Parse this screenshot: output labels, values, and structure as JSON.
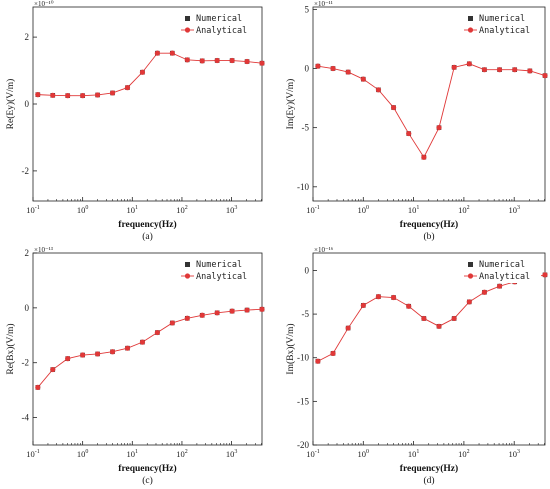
{
  "chart_data": [
    {
      "type": "line",
      "panel_label": "(a)",
      "xlabel": "frequency(Hz)",
      "ylabel": "Re(Ey)(V/m)",
      "multiplier": "×10⁻¹⁰",
      "x_scale": "log",
      "xlim": [
        0.1,
        4096
      ],
      "x_ticks": [
        {
          "v": 0.1,
          "b": "10",
          "e": "-1"
        },
        {
          "v": 1,
          "b": "10",
          "e": "0"
        },
        {
          "v": 10,
          "b": "10",
          "e": "1"
        },
        {
          "v": 100,
          "b": "10",
          "e": "2"
        },
        {
          "v": 1000,
          "b": "10",
          "e": "3"
        }
      ],
      "ylim": [
        -2.9,
        2.9
      ],
      "y_ticks": [
        {
          "v": 2,
          "label": "2"
        },
        {
          "v": 0,
          "label": "0"
        },
        {
          "v": -2,
          "label": "-2"
        }
      ],
      "legend_position": "top-right",
      "x": [
        0.125,
        0.25,
        0.5,
        1,
        2,
        4,
        8,
        16,
        32,
        64,
        128,
        256,
        512,
        1024,
        2048,
        4096
      ],
      "series": [
        {
          "name": "Numerical",
          "marker": "square",
          "color": "#333333",
          "values": [
            0.28,
            0.26,
            0.25,
            0.25,
            0.27,
            0.33,
            0.49,
            0.95,
            1.52,
            1.52,
            1.32,
            1.29,
            1.3,
            1.3,
            1.27,
            1.22
          ]
        },
        {
          "name": "Analytical",
          "marker": "circle",
          "color": "#e03838",
          "values": [
            0.28,
            0.26,
            0.25,
            0.25,
            0.27,
            0.33,
            0.49,
            0.95,
            1.52,
            1.52,
            1.32,
            1.29,
            1.3,
            1.3,
            1.27,
            1.22
          ]
        }
      ]
    },
    {
      "type": "line",
      "panel_label": "(b)",
      "xlabel": "frequency(Hz)",
      "ylabel": "Im(Ey)(V/m)",
      "multiplier": "×10⁻¹¹",
      "x_scale": "log",
      "xlim": [
        0.1,
        4096
      ],
      "x_ticks": [
        {
          "v": 0.1,
          "b": "10",
          "e": "-1"
        },
        {
          "v": 1,
          "b": "10",
          "e": "0"
        },
        {
          "v": 10,
          "b": "10",
          "e": "1"
        },
        {
          "v": 100,
          "b": "10",
          "e": "2"
        },
        {
          "v": 1000,
          "b": "10",
          "e": "3"
        }
      ],
      "ylim": [
        -11.2,
        5.2
      ],
      "y_ticks": [
        {
          "v": 5,
          "label": "5"
        },
        {
          "v": 0,
          "label": "0"
        },
        {
          "v": -5,
          "label": "-5"
        },
        {
          "v": -10,
          "label": "-10"
        }
      ],
      "legend_position": "top-right",
      "x": [
        0.125,
        0.25,
        0.5,
        1,
        2,
        4,
        8,
        16,
        32,
        64,
        128,
        256,
        512,
        1024,
        2048,
        4096
      ],
      "series": [
        {
          "name": "Numerical",
          "marker": "square",
          "color": "#333333",
          "values": [
            0.2,
            0.0,
            -0.3,
            -0.9,
            -1.8,
            -3.3,
            -5.5,
            -7.5,
            -5.0,
            0.1,
            0.4,
            -0.1,
            -0.1,
            -0.1,
            -0.2,
            -0.6
          ]
        },
        {
          "name": "Analytical",
          "marker": "circle",
          "color": "#e03838",
          "values": [
            0.2,
            0.0,
            -0.3,
            -0.9,
            -1.8,
            -3.3,
            -5.5,
            -7.5,
            -5.0,
            0.1,
            0.4,
            -0.1,
            -0.1,
            -0.1,
            -0.2,
            -0.6
          ]
        }
      ]
    },
    {
      "type": "line",
      "panel_label": "(c)",
      "xlabel": "frequency(Hz)",
      "ylabel": "Re(Bx)(V/m)",
      "multiplier": "×10⁻¹³",
      "x_scale": "log",
      "xlim": [
        0.1,
        4096
      ],
      "x_ticks": [
        {
          "v": 0.1,
          "b": "10",
          "e": "-1"
        },
        {
          "v": 1,
          "b": "10",
          "e": "0"
        },
        {
          "v": 10,
          "b": "10",
          "e": "1"
        },
        {
          "v": 100,
          "b": "10",
          "e": "2"
        },
        {
          "v": 1000,
          "b": "10",
          "e": "3"
        }
      ],
      "ylim": [
        -5.0,
        2.0
      ],
      "y_ticks": [
        {
          "v": 2,
          "label": "2"
        },
        {
          "v": 0,
          "label": "0"
        },
        {
          "v": -2,
          "label": "-2"
        },
        {
          "v": -4,
          "label": "-4"
        }
      ],
      "legend_position": "top-right",
      "x": [
        0.125,
        0.25,
        0.5,
        1,
        2,
        4,
        8,
        16,
        32,
        64,
        128,
        256,
        512,
        1024,
        2048,
        4096
      ],
      "series": [
        {
          "name": "Numerical",
          "marker": "square",
          "color": "#333333",
          "values": [
            -2.9,
            -2.25,
            -1.85,
            -1.72,
            -1.68,
            -1.6,
            -1.47,
            -1.25,
            -0.9,
            -0.55,
            -0.38,
            -0.27,
            -0.18,
            -0.12,
            -0.08,
            -0.05
          ]
        },
        {
          "name": "Analytical",
          "marker": "circle",
          "color": "#e03838",
          "values": [
            -2.9,
            -2.25,
            -1.85,
            -1.72,
            -1.68,
            -1.6,
            -1.47,
            -1.25,
            -0.9,
            -0.55,
            -0.38,
            -0.27,
            -0.18,
            -0.12,
            -0.08,
            -0.05
          ]
        }
      ]
    },
    {
      "type": "line",
      "panel_label": "(d)",
      "xlabel": "frequency(Hz)",
      "ylabel": "Im(Bx)(V/m)",
      "multiplier": "×10⁻¹⁶",
      "x_scale": "log",
      "xlim": [
        0.1,
        4096
      ],
      "x_ticks": [
        {
          "v": 0.1,
          "b": "10",
          "e": "-1"
        },
        {
          "v": 1,
          "b": "10",
          "e": "0"
        },
        {
          "v": 10,
          "b": "10",
          "e": "1"
        },
        {
          "v": 100,
          "b": "10",
          "e": "2"
        },
        {
          "v": 1000,
          "b": "10",
          "e": "3"
        }
      ],
      "ylim": [
        -20.0,
        2.0
      ],
      "y_ticks": [
        {
          "v": 0,
          "label": "0"
        },
        {
          "v": -5,
          "label": "-5"
        },
        {
          "v": -10,
          "label": "-10"
        },
        {
          "v": -15,
          "label": "-15"
        },
        {
          "v": -20,
          "label": "-20"
        }
      ],
      "legend_position": "top-right",
      "x": [
        0.125,
        0.25,
        0.5,
        1,
        2,
        4,
        8,
        16,
        32,
        64,
        128,
        256,
        512,
        1024,
        2048,
        4096
      ],
      "series": [
        {
          "name": "Numerical",
          "marker": "square",
          "color": "#333333",
          "values": [
            -10.4,
            -9.5,
            -6.6,
            -4.0,
            -3.0,
            -3.1,
            -4.1,
            -5.5,
            -6.4,
            -5.5,
            -3.6,
            -2.5,
            -1.8,
            -1.3,
            -0.9,
            -0.5
          ]
        },
        {
          "name": "Analytical",
          "marker": "circle",
          "color": "#e03838",
          "values": [
            -10.4,
            -9.5,
            -6.6,
            -4.0,
            -3.0,
            -3.1,
            -4.1,
            -5.5,
            -6.4,
            -5.5,
            -3.6,
            -2.5,
            -1.8,
            -1.3,
            -0.9,
            -0.5
          ]
        }
      ]
    }
  ]
}
